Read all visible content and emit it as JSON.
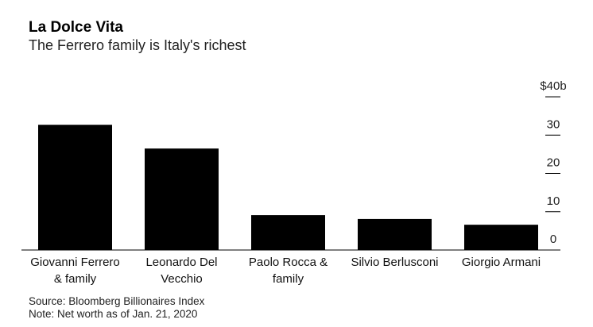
{
  "chart_data": {
    "type": "bar",
    "title": "La Dolce Vita",
    "subtitle": "The Ferrero family is Italy's richest",
    "categories": [
      "Giovanni Ferrero & family",
      "Leonardo Del Vecchio",
      "Paolo Rocca & family",
      "Silvio Berlusconi",
      "Giorgio Armani"
    ],
    "values": [
      32.7,
      26.5,
      9.1,
      8.1,
      6.6
    ],
    "color": "#000000",
    "ylim": [
      0,
      40
    ],
    "yticks": [
      0,
      10,
      20,
      30,
      {
        "value": 40,
        "label": "$40b"
      }
    ],
    "source": "Source: Bloomberg Billionaires Index",
    "note": "Note: Net worth as of Jan. 21, 2020"
  }
}
